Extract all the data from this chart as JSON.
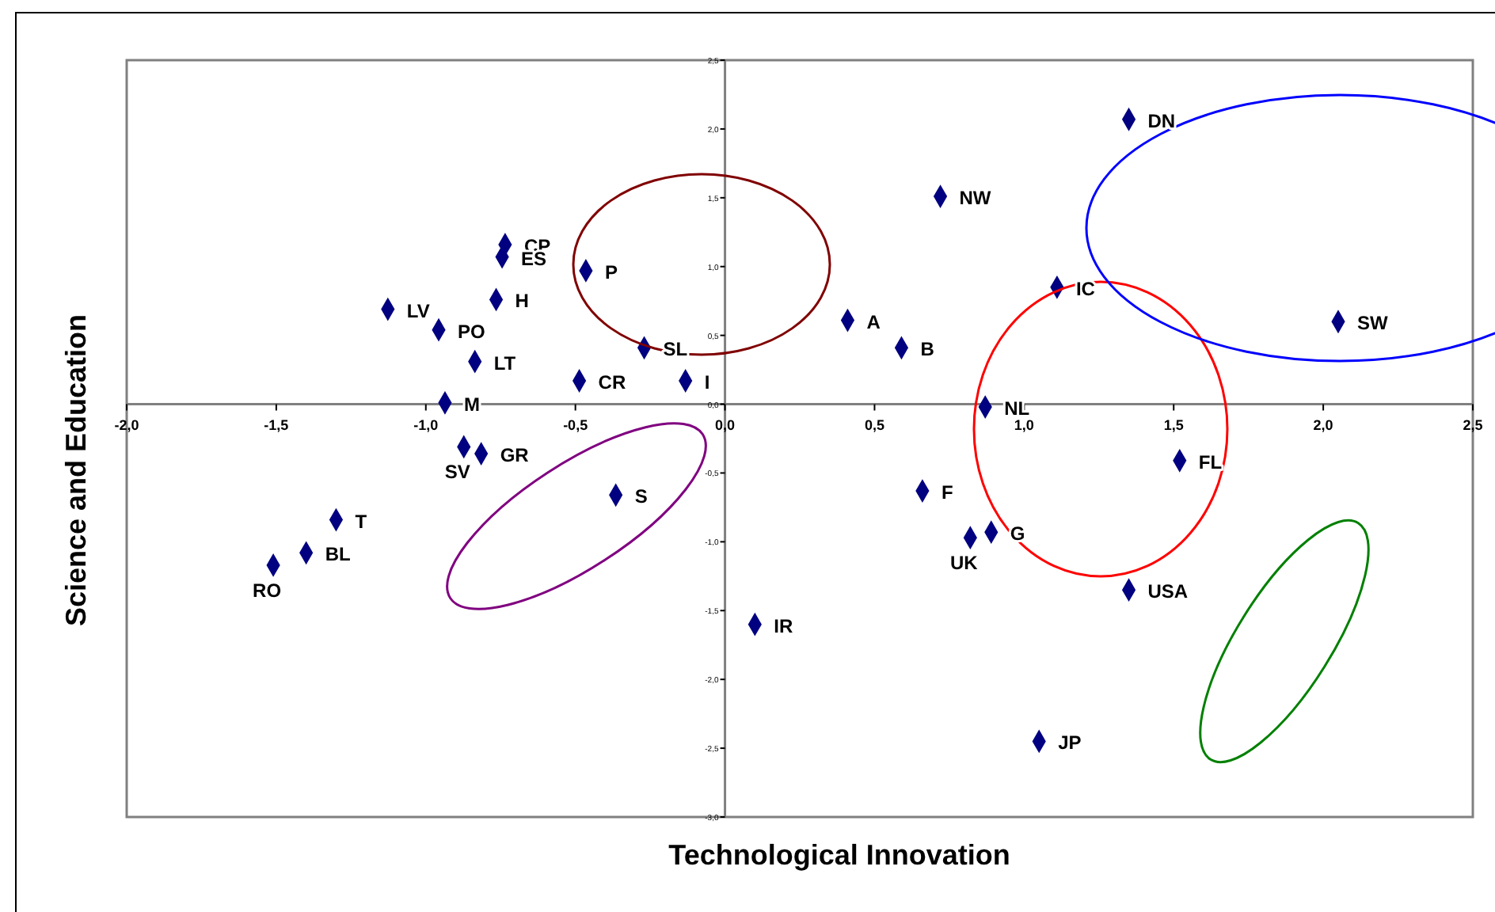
{
  "chart_data": {
    "type": "scatter",
    "xlabel": "Technological Innovation",
    "ylabel": "Science and Education",
    "color": "#000080",
    "marker": "diamond",
    "x": [
      -0.735,
      -0.745,
      -0.465,
      -0.765,
      -1.127,
      -0.957,
      -0.836,
      -0.27,
      -0.487,
      -0.132,
      -0.936,
      -0.873,
      -0.815,
      -0.365,
      -1.3,
      -1.4,
      -1.51,
      0.1,
      0.41,
      0.59,
      0.72,
      1.35,
      1.11,
      2.05,
      0.87,
      1.52,
      0.66,
      0.82,
      0.89,
      1.35,
      1.05
    ],
    "values": [
      1.16,
      1.07,
      0.97,
      0.76,
      0.69,
      0.54,
      0.31,
      0.41,
      0.17,
      0.17,
      0.01,
      -0.31,
      -0.36,
      -0.66,
      -0.84,
      -1.08,
      -1.17,
      -1.6,
      0.61,
      0.41,
      1.51,
      2.07,
      0.85,
      0.6,
      -0.02,
      -0.41,
      -0.63,
      -0.97,
      -0.93,
      -1.35,
      -2.45
    ],
    "xlim": [
      -2,
      2.5
    ],
    "xticks": [
      {
        "value": -2,
        "label": "-2,0"
      },
      {
        "value": -1.5,
        "label": "-1,5"
      },
      {
        "value": -1,
        "label": "-1,0"
      },
      {
        "value": -0.5,
        "label": "-0,5"
      },
      {
        "value": 0,
        "label": "0,0"
      },
      {
        "value": 0.5,
        "label": "0,5"
      },
      {
        "value": 1,
        "label": "1,0"
      },
      {
        "value": 1.5,
        "label": "1,5"
      },
      {
        "value": 2,
        "label": "2,0"
      },
      {
        "value": 2.5,
        "label": "2,5"
      }
    ],
    "ylim": [
      -3,
      2.5
    ],
    "yticks": [
      {
        "value": -3,
        "label": "-3,0"
      },
      {
        "value": -2.5,
        "label": "-2,5"
      },
      {
        "value": -2,
        "label": "-2,0"
      },
      {
        "value": -1.5,
        "label": "-1,5"
      },
      {
        "value": -1,
        "label": "-1,0"
      },
      {
        "value": -0.5,
        "label": "-0,5"
      },
      {
        "value": 0,
        "label": "0,0"
      },
      {
        "value": 0.5,
        "label": "0,5"
      },
      {
        "value": 1,
        "label": "1,0"
      },
      {
        "value": 1.5,
        "label": "1,5"
      },
      {
        "value": 2,
        "label": "2,0"
      },
      {
        "value": 2.5,
        "label": "2,5"
      }
    ],
    "annotations": [
      {
        "text": "CP",
        "x": -0.735,
        "y": 1.16
      },
      {
        "text": "ES",
        "x": -0.745,
        "y": 1.07
      },
      {
        "text": "P",
        "x": -0.465,
        "y": 0.97
      },
      {
        "text": "H",
        "x": -0.765,
        "y": 0.76
      },
      {
        "text": "LV",
        "x": -1.127,
        "y": 0.69
      },
      {
        "text": "PO",
        "x": -0.957,
        "y": 0.54
      },
      {
        "text": "LT",
        "x": -0.836,
        "y": 0.31
      },
      {
        "text": "SL",
        "x": -0.27,
        "y": 0.41
      },
      {
        "text": "CR",
        "x": -0.487,
        "y": 0.17
      },
      {
        "text": "I",
        "x": -0.132,
        "y": 0.17
      },
      {
        "text": "M",
        "x": -0.936,
        "y": 0.01
      },
      {
        "text": "SV",
        "x": -0.873,
        "y": -0.31
      },
      {
        "text": "GR",
        "x": -0.815,
        "y": -0.36
      },
      {
        "text": "S",
        "x": -0.365,
        "y": -0.66
      },
      {
        "text": "T",
        "x": -1.3,
        "y": -0.84
      },
      {
        "text": "BL",
        "x": -1.4,
        "y": -1.08
      },
      {
        "text": "RO",
        "x": -1.51,
        "y": -1.17
      },
      {
        "text": "IR",
        "x": 0.1,
        "y": -1.6
      },
      {
        "text": "A",
        "x": 0.41,
        "y": 0.61
      },
      {
        "text": "B",
        "x": 0.59,
        "y": 0.41
      },
      {
        "text": "NW",
        "x": 0.72,
        "y": 1.51
      },
      {
        "text": "DN",
        "x": 1.35,
        "y": 2.07
      },
      {
        "text": "IC",
        "x": 1.11,
        "y": 0.85
      },
      {
        "text": "SW",
        "x": 2.05,
        "y": 0.6
      },
      {
        "text": "NL",
        "x": 0.87,
        "y": -0.02
      },
      {
        "text": "FL",
        "x": 1.52,
        "y": -0.41
      },
      {
        "text": "F",
        "x": 0.66,
        "y": -0.63
      },
      {
        "text": "UK",
        "x": 0.82,
        "y": -0.97
      },
      {
        "text": "G",
        "x": 0.89,
        "y": -0.93
      },
      {
        "text": "USA",
        "x": 1.35,
        "y": -1.35
      },
      {
        "text": "JP",
        "x": 1.05,
        "y": -2.45
      }
    ]
  }
}
